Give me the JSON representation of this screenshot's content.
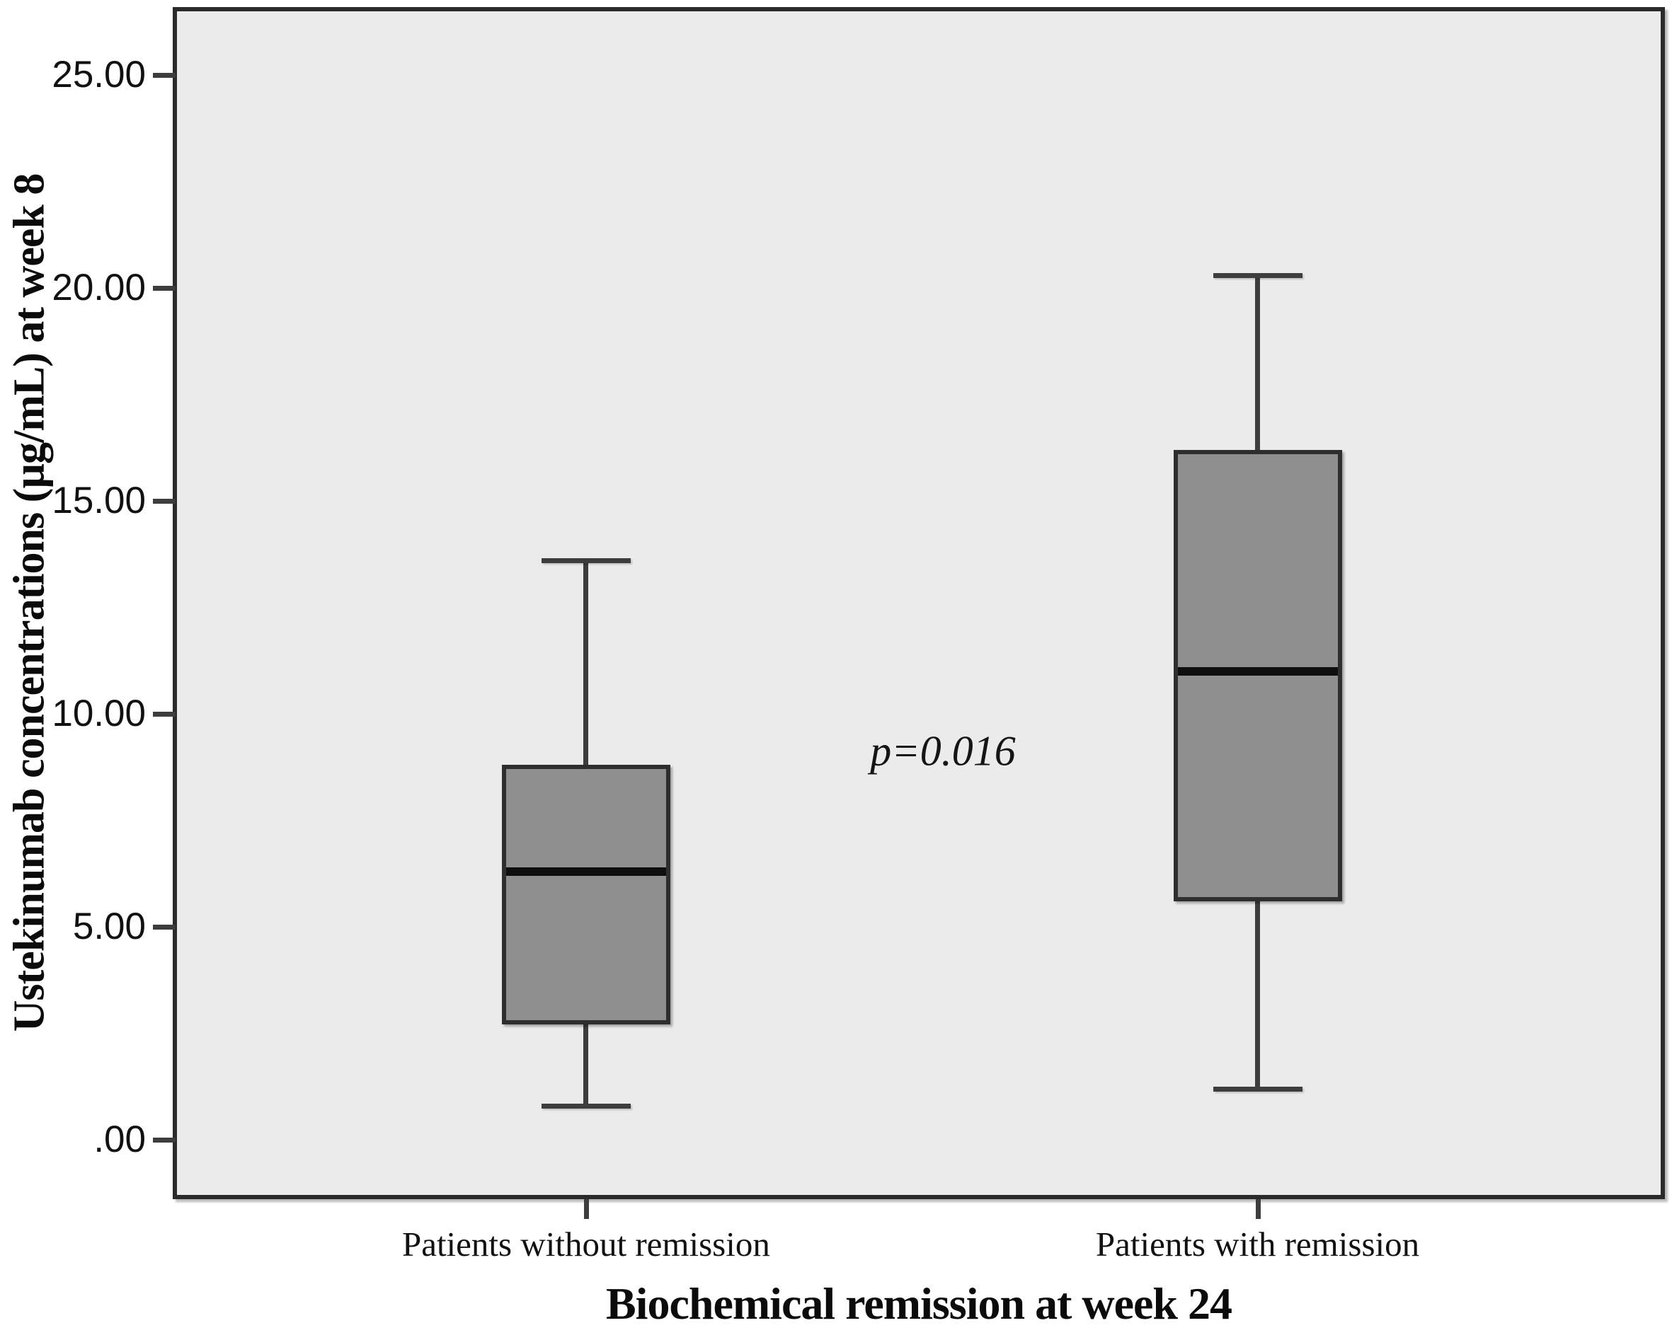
{
  "chart_data": {
    "type": "boxplot",
    "title": "",
    "xlabel": "Biochemical remission at week 24",
    "ylabel": "Ustekinumab concentrations (µg/mL) at week 8",
    "categories": [
      "Patients without remission",
      "Patients with remission"
    ],
    "y_ticks": [
      {
        "value": 25,
        "label": "25.00"
      },
      {
        "value": 20,
        "label": "20.00"
      },
      {
        "value": 15,
        "label": "15.00"
      },
      {
        "value": 10,
        "label": "10.00"
      },
      {
        "value": 5,
        "label": "5.00"
      },
      {
        "value": 0,
        "label": ".00"
      }
    ],
    "ylim": [
      -1.4,
      26.6
    ],
    "grid": false,
    "legend": false,
    "series": [
      {
        "category": "Patients without remission",
        "whisker_low": 0.8,
        "q1": 2.7,
        "median": 6.3,
        "q3": 8.8,
        "whisker_high": 13.6
      },
      {
        "category": "Patients with remission",
        "whisker_low": 1.2,
        "q1": 5.6,
        "median": 11.0,
        "q3": 16.2,
        "whisker_high": 20.3
      }
    ],
    "annotation": {
      "text": "p=0.016"
    }
  },
  "colors": {
    "plot_background": "#ebebeb",
    "frame": "#2a2a2a",
    "box_fill": "#8f8f8f",
    "box_border": "#2e2e2e",
    "median": "#0f0f0f",
    "whisker": "#3d3d3d",
    "text": "#111111"
  }
}
